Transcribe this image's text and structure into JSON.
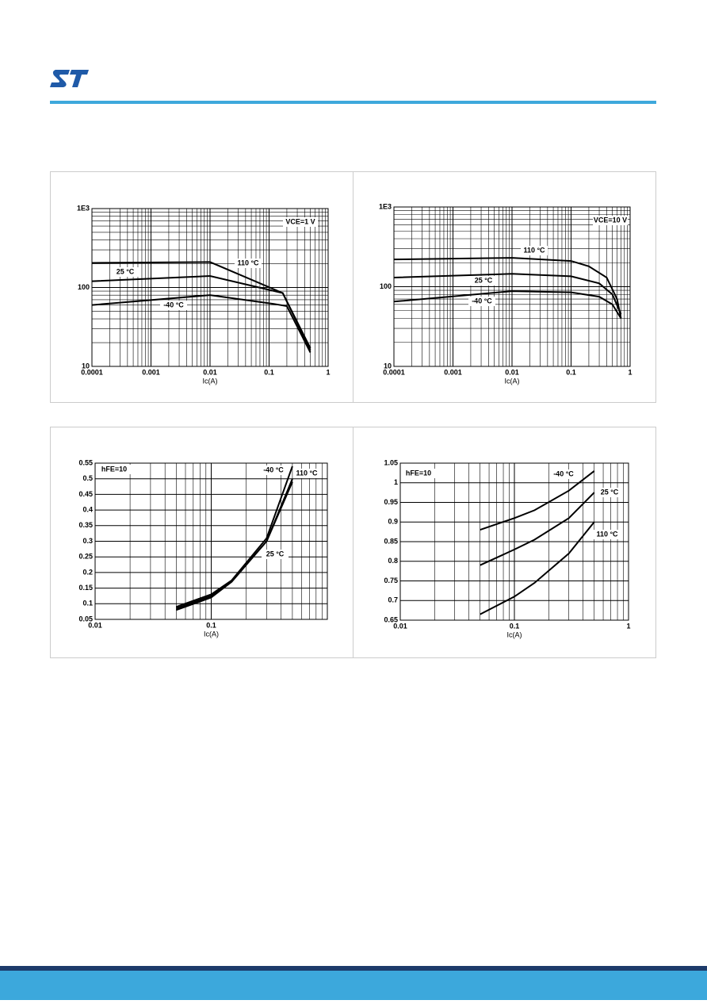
{
  "chart_data": [
    {
      "type": "line",
      "x_label": "Ic(A)",
      "annotation": "VCE=1 V",
      "xlog": true,
      "ylog": true,
      "grid": true,
      "minor_grid": true,
      "xlim": [
        0.0001,
        1
      ],
      "xticks": [
        0.0001,
        0.001,
        0.01,
        0.1,
        1
      ],
      "ylim": [
        10,
        1000
      ],
      "yticks": [
        10,
        100,
        {
          "value": 1000,
          "label": "1E3"
        }
      ],
      "series": [
        {
          "name": "110 °C",
          "color": "#000000",
          "x": [
            0.0001,
            0.01,
            0.17,
            0.5
          ],
          "values": [
            205,
            210,
            85,
            17
          ]
        },
        {
          "name": "25 °C",
          "color": "#000000",
          "x": [
            0.0001,
            0.01,
            0.17,
            0.5
          ],
          "values": [
            120,
            140,
            85,
            16
          ]
        },
        {
          "name": "-40 °C",
          "color": "#000000",
          "x": [
            0.0001,
            0.01,
            0.12,
            0.2,
            0.5
          ],
          "values": [
            60,
            80,
            62,
            58,
            15
          ]
        }
      ]
    },
    {
      "type": "line",
      "x_label": "Ic(A)",
      "annotation": "VCE=10 V",
      "xlog": true,
      "ylog": true,
      "grid": true,
      "minor_grid": true,
      "xlim": [
        0.0001,
        1
      ],
      "xticks": [
        0.0001,
        0.001,
        0.01,
        0.1,
        1
      ],
      "ylim": [
        10,
        1000
      ],
      "yticks": [
        10,
        100,
        {
          "value": 1000,
          "label": "1E3"
        }
      ],
      "series": [
        {
          "name": "110 °C",
          "color": "#000000",
          "x": [
            0.0001,
            0.01,
            0.1,
            0.2,
            0.4,
            0.6,
            0.7
          ],
          "values": [
            220,
            230,
            210,
            180,
            130,
            70,
            40
          ]
        },
        {
          "name": "25 °C",
          "color": "#000000",
          "x": [
            0.0001,
            0.01,
            0.1,
            0.3,
            0.5,
            0.7
          ],
          "values": [
            130,
            145,
            135,
            110,
            80,
            45
          ]
        },
        {
          "name": "-40 °C",
          "color": "#000000",
          "x": [
            0.0001,
            0.01,
            0.1,
            0.3,
            0.5,
            0.7
          ],
          "values": [
            65,
            88,
            85,
            75,
            60,
            40
          ]
        }
      ]
    },
    {
      "type": "line",
      "x_label": "Ic(A)",
      "annotation": "hFE=10",
      "xlog": true,
      "ylog": false,
      "grid": true,
      "minor_grid": true,
      "xlim": [
        0.01,
        1
      ],
      "xticks": [
        0.01,
        0.1
      ],
      "ylim": [
        0.05,
        0.55
      ],
      "yticks": [
        0.05,
        0.1,
        0.15,
        0.2,
        0.25,
        0.3,
        0.35,
        0.4,
        0.45,
        0.5,
        0.55
      ],
      "series": [
        {
          "name": "-40 °C",
          "color": "#000000",
          "x": [
            0.05,
            0.1,
            0.15,
            0.3,
            0.5
          ],
          "values": [
            0.09,
            0.13,
            0.175,
            0.31,
            0.54
          ]
        },
        {
          "name": "110 °C",
          "color": "#000000",
          "x": [
            0.05,
            0.1,
            0.15,
            0.3,
            0.5
          ],
          "values": [
            0.08,
            0.12,
            0.17,
            0.3,
            0.49
          ]
        },
        {
          "name": "25 °C",
          "color": "#000000",
          "x": [
            0.05,
            0.1,
            0.15,
            0.3,
            0.5
          ],
          "values": [
            0.085,
            0.125,
            0.172,
            0.3,
            0.5
          ]
        }
      ]
    },
    {
      "type": "line",
      "x_label": "Ic(A)",
      "annotation": "hFE=10",
      "xlog": true,
      "ylog": false,
      "grid": true,
      "minor_grid": true,
      "xlim": [
        0.01,
        1
      ],
      "xticks": [
        0.01,
        0.1,
        1
      ],
      "ylim": [
        0.65,
        1.05
      ],
      "yticks": [
        0.65,
        0.7,
        0.75,
        0.8,
        0.85,
        0.9,
        0.95,
        1,
        1.05
      ],
      "series": [
        {
          "name": "-40 °C",
          "color": "#000000",
          "x": [
            0.05,
            0.1,
            0.15,
            0.3,
            0.5
          ],
          "values": [
            0.88,
            0.91,
            0.93,
            0.98,
            1.03
          ]
        },
        {
          "name": "25 °C",
          "color": "#000000",
          "x": [
            0.05,
            0.1,
            0.15,
            0.3,
            0.5
          ],
          "values": [
            0.79,
            0.83,
            0.855,
            0.91,
            0.975
          ]
        },
        {
          "name": "110 °C",
          "color": "#000000",
          "x": [
            0.05,
            0.1,
            0.15,
            0.3,
            0.5
          ],
          "values": [
            0.665,
            0.71,
            0.745,
            0.82,
            0.9
          ]
        }
      ]
    }
  ]
}
